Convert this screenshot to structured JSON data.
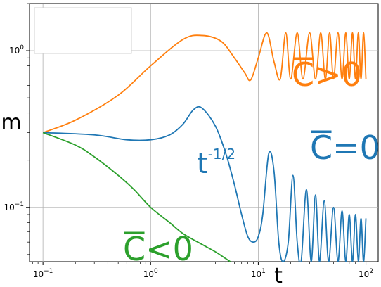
{
  "chart_data": {
    "type": "line",
    "xlabel": "t",
    "ylabel": "m",
    "x_scale": "log",
    "y_scale": "log",
    "xlim": [
      0.075,
      130
    ],
    "ylim": [
      0.045,
      2.0
    ],
    "grid": true,
    "legend": "top-left (empty box)",
    "x_ticks": [
      {
        "value": 0.1,
        "base": "10",
        "exp": "−1"
      },
      {
        "value": 1,
        "base": "10",
        "exp": "0"
      },
      {
        "value": 10,
        "base": "10",
        "exp": "1"
      },
      {
        "value": 100,
        "base": "10",
        "exp": "2"
      }
    ],
    "y_ticks": [
      {
        "value": 0.1,
        "base": "10",
        "exp": "−1"
      },
      {
        "value": 1,
        "base": "10",
        "exp": "0"
      }
    ],
    "series": [
      {
        "label": "C>0",
        "color": "#ff7f0e",
        "x": [
          0.1,
          0.2,
          0.5,
          1,
          2,
          3,
          4.5,
          6,
          7.5,
          8.5,
          10,
          12,
          14,
          16,
          18,
          20,
          23,
          26,
          30,
          34,
          38,
          42,
          46,
          50,
          55,
          60,
          65,
          70,
          75,
          80,
          85,
          90,
          95,
          100
        ],
        "y": [
          0.3,
          0.36,
          0.52,
          0.8,
          1.18,
          1.25,
          1.15,
          0.9,
          0.72,
          0.65,
          0.9,
          1.3,
          0.85,
          0.66,
          1.3,
          0.66,
          1.3,
          0.66,
          1.3,
          0.66,
          1.3,
          0.66,
          1.3,
          0.66,
          1.3,
          0.66,
          1.3,
          0.66,
          1.3,
          0.66,
          1.3,
          0.66,
          1.3,
          0.66
        ]
      },
      {
        "label": "C=0",
        "color": "#1f77b4",
        "x": [
          0.1,
          0.3,
          0.6,
          1,
          1.5,
          2,
          2.5,
          3,
          4,
          5,
          6,
          7,
          8,
          9,
          10,
          11,
          12.5,
          14,
          15.5,
          17,
          19,
          21,
          23,
          25,
          28,
          31,
          34,
          37,
          41,
          45,
          50,
          55,
          60,
          65,
          70,
          75,
          80,
          85,
          90,
          95,
          100
        ],
        "y": [
          0.3,
          0.29,
          0.27,
          0.27,
          0.29,
          0.34,
          0.42,
          0.43,
          0.33,
          0.22,
          0.14,
          0.09,
          0.065,
          0.06,
          0.065,
          0.09,
          0.22,
          0.17,
          0.06,
          0.045,
          0.06,
          0.16,
          0.06,
          0.045,
          0.13,
          0.045,
          0.12,
          0.045,
          0.11,
          0.045,
          0.1,
          0.045,
          0.095,
          0.045,
          0.09,
          0.045,
          0.09,
          0.045,
          0.085,
          0.045,
          0.085
        ]
      },
      {
        "label": "C<0",
        "color": "#2ca02c",
        "x": [
          0.1,
          0.2,
          0.3,
          0.5,
          0.7,
          1,
          1.5,
          2,
          3,
          4,
          5,
          5.5
        ],
        "y": [
          0.3,
          0.25,
          0.21,
          0.16,
          0.13,
          0.1,
          0.08,
          0.068,
          0.058,
          0.052,
          0.047,
          0.045
        ]
      }
    ],
    "annotations": [
      {
        "text": "C>0",
        "color": "#ff7f0e",
        "overline": "C"
      },
      {
        "text": "C=0",
        "color": "#1f77b4",
        "overline": "C"
      },
      {
        "text": "C<0",
        "color": "#2ca02c",
        "overline": "C"
      },
      {
        "text": "t",
        "superscript": "-1/2",
        "color": "#1f77b4"
      }
    ]
  }
}
